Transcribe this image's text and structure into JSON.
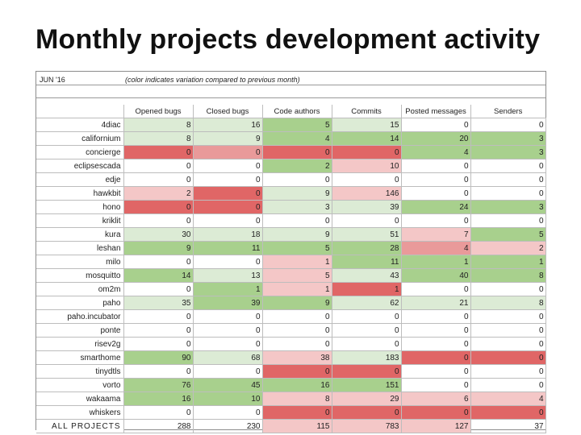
{
  "title": "Monthly projects development activity",
  "period": "JUN '16",
  "note": "(color indicates variation compared to previous month)",
  "columns": [
    "Opened bugs",
    "Closed bugs",
    "Code authors",
    "Commits",
    "Posted messages",
    "Senders"
  ],
  "colors": {
    "light_red": "#f4c7c7",
    "medium_red": "#e99a9a",
    "dark_red": "#e06666",
    "light_green": "#dcebd5",
    "medium_green": "#a8d08d",
    "dark_green": "#6aaa55"
  },
  "rows": [
    {
      "name": "4diac",
      "values": [
        "8",
        "16",
        "5",
        "15",
        "0",
        "0"
      ],
      "shades": [
        "lg",
        "lg",
        "mg",
        "lg",
        "",
        ""
      ]
    },
    {
      "name": "californium",
      "values": [
        "8",
        "9",
        "4",
        "14",
        "20",
        "3"
      ],
      "shades": [
        "lg",
        "lg",
        "mg",
        "mg",
        "mg",
        "mg"
      ]
    },
    {
      "name": "concierge",
      "values": [
        "0",
        "0",
        "0",
        "0",
        "4",
        "3"
      ],
      "shades": [
        "dr",
        "mr",
        "dr",
        "dr",
        "mg",
        "mg"
      ]
    },
    {
      "name": "eclipsescada",
      "values": [
        "0",
        "0",
        "2",
        "10",
        "0",
        "0"
      ],
      "shades": [
        "",
        "",
        "mg",
        "lp",
        "",
        ""
      ]
    },
    {
      "name": "edje",
      "values": [
        "0",
        "0",
        "0",
        "0",
        "0",
        "0"
      ],
      "shades": [
        "",
        "",
        "",
        "",
        "",
        ""
      ]
    },
    {
      "name": "hawkbit",
      "values": [
        "2",
        "0",
        "9",
        "146",
        "0",
        "0"
      ],
      "shades": [
        "lp",
        "dr",
        "lg",
        "lp",
        "",
        ""
      ]
    },
    {
      "name": "hono",
      "values": [
        "0",
        "0",
        "3",
        "39",
        "24",
        "3"
      ],
      "shades": [
        "dr",
        "dr",
        "lg",
        "lg",
        "mg",
        "mg"
      ]
    },
    {
      "name": "kriklit",
      "values": [
        "0",
        "0",
        "0",
        "0",
        "0",
        "0"
      ],
      "shades": [
        "",
        "",
        "",
        "",
        "",
        ""
      ]
    },
    {
      "name": "kura",
      "values": [
        "30",
        "18",
        "9",
        "51",
        "7",
        "5"
      ],
      "shades": [
        "lg",
        "lg",
        "lg",
        "lg",
        "lp",
        "mg"
      ]
    },
    {
      "name": "leshan",
      "values": [
        "9",
        "11",
        "5",
        "28",
        "4",
        "2"
      ],
      "shades": [
        "mg",
        "mg",
        "mg",
        "mg",
        "mr",
        "lp"
      ]
    },
    {
      "name": "milo",
      "values": [
        "0",
        "0",
        "1",
        "11",
        "1",
        "1"
      ],
      "shades": [
        "",
        "",
        "lp",
        "mg",
        "mg",
        "mg"
      ]
    },
    {
      "name": "mosquitto",
      "values": [
        "14",
        "13",
        "5",
        "43",
        "40",
        "8"
      ],
      "shades": [
        "mg",
        "lg",
        "lp",
        "lg",
        "mg",
        "mg"
      ]
    },
    {
      "name": "om2m",
      "values": [
        "0",
        "1",
        "1",
        "1",
        "0",
        "0"
      ],
      "shades": [
        "",
        "mg",
        "lp",
        "dr",
        "",
        ""
      ]
    },
    {
      "name": "paho",
      "values": [
        "35",
        "39",
        "9",
        "62",
        "21",
        "8"
      ],
      "shades": [
        "lg",
        "mg",
        "mg",
        "lg",
        "lg",
        "lg"
      ]
    },
    {
      "name": "paho.incubator",
      "values": [
        "0",
        "0",
        "0",
        "0",
        "0",
        "0"
      ],
      "shades": [
        "",
        "",
        "",
        "",
        "",
        ""
      ]
    },
    {
      "name": "ponte",
      "values": [
        "0",
        "0",
        "0",
        "0",
        "0",
        "0"
      ],
      "shades": [
        "",
        "",
        "",
        "",
        "",
        ""
      ]
    },
    {
      "name": "risev2g",
      "values": [
        "0",
        "0",
        "0",
        "0",
        "0",
        "0"
      ],
      "shades": [
        "",
        "",
        "",
        "",
        "",
        ""
      ]
    },
    {
      "name": "smarthome",
      "values": [
        "90",
        "68",
        "38",
        "183",
        "0",
        "0"
      ],
      "shades": [
        "mg",
        "lg",
        "lp",
        "lg",
        "dr",
        "dr"
      ]
    },
    {
      "name": "tinydtls",
      "values": [
        "0",
        "0",
        "0",
        "0",
        "0",
        "0"
      ],
      "shades": [
        "",
        "",
        "dr",
        "dr",
        "",
        ""
      ]
    },
    {
      "name": "vorto",
      "values": [
        "76",
        "45",
        "16",
        "151",
        "0",
        "0"
      ],
      "shades": [
        "mg",
        "mg",
        "mg",
        "mg",
        "",
        ""
      ]
    },
    {
      "name": "wakaama",
      "values": [
        "16",
        "10",
        "8",
        "29",
        "6",
        "4"
      ],
      "shades": [
        "mg",
        "mg",
        "lp",
        "lp",
        "lp",
        "lp"
      ]
    },
    {
      "name": "whiskers",
      "values": [
        "0",
        "0",
        "0",
        "0",
        "0",
        "0"
      ],
      "shades": [
        "",
        "",
        "dr",
        "dr",
        "dr",
        "dr"
      ]
    },
    {
      "name": "ALL PROJECTS",
      "values": [
        "288",
        "230",
        "115",
        "783",
        "127",
        "37"
      ],
      "shades": [
        "",
        "",
        "lp",
        "lp",
        "lp",
        ""
      ]
    }
  ]
}
